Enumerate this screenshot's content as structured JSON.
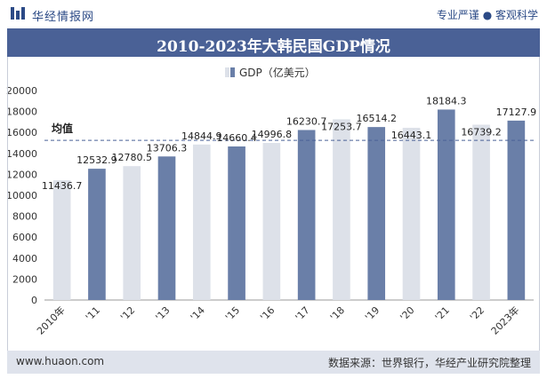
{
  "header": {
    "brand_name": "华经情报网",
    "slogan": "专业严谨 ● 客观科学"
  },
  "chart_data": {
    "type": "bar",
    "title": "2010-2023年大韩民国GDP情况",
    "legend_label": "GDP（亿美元）",
    "legend_placement": "top-center",
    "categories": [
      "2010年",
      "'11",
      "'12",
      "'13",
      "'14",
      "'15",
      "'16",
      "'17",
      "'18",
      "'19",
      "'20",
      "'21",
      "'22",
      "2023年"
    ],
    "values": [
      11436.7,
      12532.9,
      12780.5,
      13706.3,
      14844.9,
      14660.4,
      14996.8,
      16230.7,
      17253.7,
      16514.2,
      16443.1,
      18184.3,
      16739.2,
      17127.9
    ],
    "value_labels": [
      "11436.7",
      "12532.9",
      "12780.5",
      "13706.3",
      "14844.9",
      "14660.4",
      "14996.8",
      "16230.7",
      "17253.7",
      "16514.2",
      "16443.1",
      "18184.3",
      "16739.2",
      "17127.9"
    ],
    "ylim": [
      0,
      20000
    ],
    "yticks": [
      0,
      2000,
      4000,
      6000,
      8000,
      10000,
      12000,
      14000,
      16000,
      18000,
      20000
    ],
    "ytick_labels": [
      "0",
      "2000",
      "4000",
      "6000",
      "8000",
      "10000",
      "12000",
      "14000",
      "16000",
      "18000",
      "20000"
    ],
    "average": {
      "label": "均值",
      "value": 15246
    },
    "grid": false,
    "colors": {
      "bar_light": "#dde1e9",
      "bar_dark": "#6a7fa8",
      "average_line": "#4a6196",
      "axis": "#999999"
    }
  },
  "footer": {
    "site": "www.huaon.com",
    "source": "数据来源：世界银行，华经产业研究院整理"
  }
}
